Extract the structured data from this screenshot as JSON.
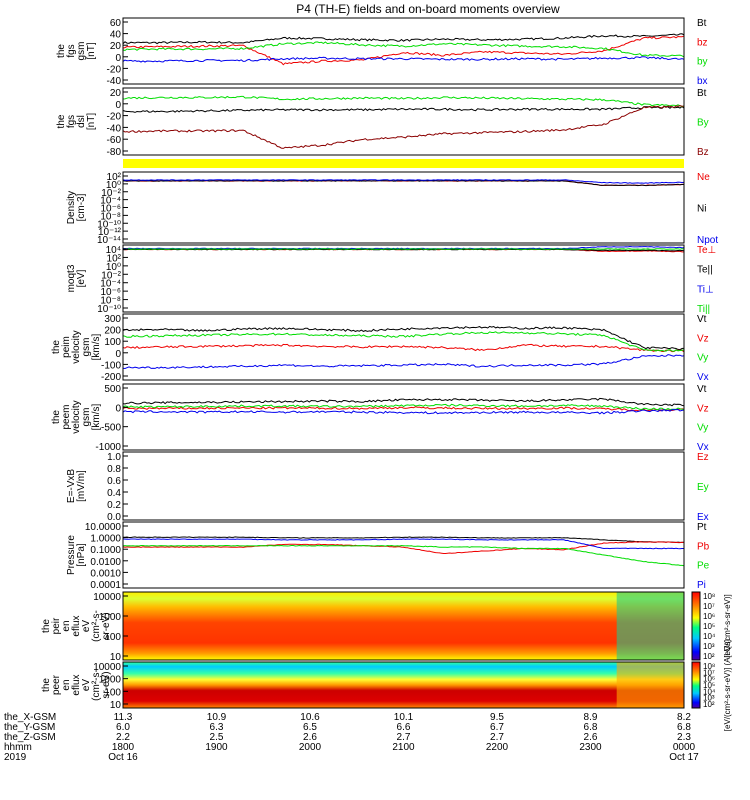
{
  "title": "P4 (TH-E) fields and on-board moments overview",
  "colors": {
    "black": "#000000",
    "red": "#ee0000",
    "green": "#00dd00",
    "blue": "#0000ee",
    "darkred": "#8b0000",
    "yellow": "#ffff00"
  },
  "chart_data": {
    "type": "line",
    "x_axis": {
      "rows": [
        {
          "label": "the_X-GSM",
          "values": [
            "11.3",
            "10.9",
            "10.6",
            "10.1",
            "9.5",
            "8.9",
            "8.2"
          ]
        },
        {
          "label": "the_Y-GSM",
          "values": [
            "6.0",
            "6.3",
            "6.5",
            "6.6",
            "6.7",
            "6.8",
            "6.8"
          ]
        },
        {
          "label": "the_Z-GSM",
          "values": [
            "2.2",
            "2.5",
            "2.6",
            "2.7",
            "2.7",
            "2.6",
            "2.3"
          ]
        },
        {
          "label": "hhmm",
          "values": [
            "1800",
            "1900",
            "2000",
            "2100",
            "2200",
            "2300",
            "0000"
          ]
        }
      ],
      "year": "2019",
      "date_start": "Oct 16",
      "date_end": "Oct 17",
      "range": [
        "1800",
        "0000"
      ]
    },
    "panels": [
      {
        "id": "fgs-gsm",
        "ylabel": [
          "the",
          "fgs",
          "gsm",
          "[nT]"
        ],
        "ticks": [
          "60",
          "40",
          "20",
          "0",
          "-20",
          "-40"
        ],
        "ylim": [
          -50,
          65
        ],
        "series": [
          {
            "name": "Bt",
            "color": "black",
            "values": [
              22,
              22,
              23,
              22,
              30,
              29,
              27,
              26,
              28,
              27,
              28,
              30,
              34,
              33,
              36
            ]
          },
          {
            "name": "bz",
            "color": "red",
            "values": [
              14,
              15,
              16,
              17,
              -15,
              -10,
              -8,
              5,
              0,
              6,
              4,
              2,
              8,
              30,
              32
            ]
          },
          {
            "name": "by",
            "color": "green",
            "values": [
              10,
              11,
              11,
              12,
              20,
              22,
              18,
              16,
              20,
              18,
              16,
              15,
              12,
              0,
              -1
            ]
          },
          {
            "name": "bx",
            "color": "blue",
            "values": [
              -10,
              -10,
              -9,
              -9,
              -6,
              -5,
              -6,
              -6,
              -7,
              -7,
              -6,
              -7,
              -5,
              -4,
              -7
            ]
          }
        ]
      },
      {
        "id": "fgs-dsl",
        "ylabel": [
          "the",
          "fgs",
          "dsl",
          "[nT]"
        ],
        "ticks": [
          "20",
          "0",
          "-20",
          "-40",
          "-60",
          "-80"
        ],
        "ylim": [
          -90,
          30
        ],
        "series": [
          {
            "name": "Bt",
            "color": "black",
            "values": [
              -12,
              -12,
              -11,
              -10,
              -9,
              -9,
              -9,
              -8,
              -8,
              -9,
              -8,
              -8,
              -8,
              -5,
              -5
            ]
          },
          {
            "name": "By",
            "color": "green",
            "values": [
              12,
              13,
              13,
              14,
              10,
              11,
              12,
              11,
              13,
              12,
              11,
              10,
              9,
              0,
              -2
            ]
          },
          {
            "name": "Bz",
            "color": "darkred",
            "values": [
              -48,
              -47,
              -47,
              -46,
              -78,
              -72,
              -62,
              -58,
              -52,
              -50,
              -48,
              -45,
              -35,
              -5,
              -3
            ]
          }
        ]
      },
      {
        "id": "density",
        "ylabel": [
          "Density",
          "[cm-3]"
        ],
        "ticks": [
          "10²",
          "10⁰",
          "10⁻²",
          "10⁻⁴",
          "10⁻⁶",
          "10⁻⁸",
          "10⁻¹⁰",
          "10⁻¹²",
          "10⁻¹⁴"
        ],
        "log": true,
        "ylim": [
          -14,
          2
        ],
        "series": [
          {
            "name": "Ne",
            "color": "red",
            "values": [
              0,
              0,
              0,
              0,
              0,
              0,
              0,
              0,
              0,
              0,
              0,
              0,
              -1,
              -1,
              -0.8
            ]
          },
          {
            "name": "Ni",
            "color": "black",
            "values": [
              0,
              0,
              0,
              0,
              0,
              0,
              0,
              0,
              0,
              0,
              0,
              0,
              -1,
              -1,
              -0.8
            ]
          },
          {
            "name": "Npot",
            "color": "blue",
            "values": [
              0.2,
              0.2,
              0.2,
              0.2,
              0.2,
              0.2,
              0.2,
              0.2,
              0.2,
              0.2,
              0.2,
              0.2,
              -0.4,
              -0.5,
              -0.3
            ]
          }
        ]
      },
      {
        "id": "moms",
        "ylabel": [
          "moqt3",
          "[eV]"
        ],
        "ticks": [
          "10⁴",
          "10²",
          "10⁰",
          "10⁻²",
          "10⁻⁴",
          "10⁻⁶",
          "10⁻⁸",
          "10⁻¹⁰"
        ],
        "log": true,
        "ylim": [
          -11,
          4
        ],
        "series": [
          {
            "name": "Te⊥",
            "color": "red",
            "values": [
              3,
              3,
              3,
              3,
              3,
              3,
              3,
              3,
              3,
              3,
              3,
              3,
              2.6,
              2.7,
              2.5
            ]
          },
          {
            "name": "Te||",
            "color": "black",
            "values": [
              3,
              3,
              3,
              3,
              3,
              3,
              3,
              3,
              3,
              3,
              3,
              3,
              2.8,
              2.8,
              2.7
            ]
          },
          {
            "name": "Ti⊥",
            "color": "blue",
            "values": [
              3.2,
              3.2,
              3.2,
              3.2,
              3.2,
              3.2,
              3.2,
              3.2,
              3.2,
              3.2,
              3.2,
              3.2,
              3.6,
              3.6,
              3.4
            ]
          },
          {
            "name": "Ti||",
            "color": "green",
            "values": [
              3.1,
              3.1,
              3.1,
              3.1,
              3.1,
              3.1,
              3.1,
              3.1,
              3.1,
              3.1,
              3.1,
              3.1,
              3.1,
              3.1,
              3.1
            ]
          }
        ]
      },
      {
        "id": "peim-velocity",
        "ylabel": [
          "the",
          "peim",
          "velocity",
          "gsm",
          "[km/s]"
        ],
        "ticks": [
          "300",
          "200",
          "100",
          "0",
          "-100",
          "-200"
        ],
        "ylim": [
          -220,
          310
        ],
        "series": [
          {
            "name": "Vt",
            "color": "black",
            "values": [
              180,
              185,
              175,
              190,
              195,
              185,
              175,
              190,
              200,
              205,
              195,
              200,
              180,
              40,
              30
            ]
          },
          {
            "name": "Vz",
            "color": "red",
            "values": [
              40,
              45,
              50,
              55,
              60,
              50,
              45,
              50,
              40,
              20,
              60,
              50,
              50,
              20,
              10
            ]
          },
          {
            "name": "Vy",
            "color": "green",
            "values": [
              130,
              135,
              140,
              145,
              150,
              140,
              135,
              130,
              150,
              160,
              160,
              150,
              140,
              20,
              15
            ]
          },
          {
            "name": "Vx",
            "color": "blue",
            "values": [
              -120,
              -120,
              -115,
              -110,
              -100,
              -110,
              -105,
              -100,
              -95,
              -110,
              -100,
              -100,
              -90,
              -30,
              -20
            ]
          }
        ]
      },
      {
        "id": "peem-velocity",
        "ylabel": [
          "the",
          "peem",
          "velocity",
          "gsm",
          "[km/s]"
        ],
        "ticks": [
          "500",
          "0",
          "-500",
          "-1000"
        ],
        "ylim": [
          -1000,
          620
        ],
        "series": [
          {
            "name": "Vt",
            "color": "black",
            "values": [
              150,
              160,
              170,
              180,
              190,
              200,
              190,
              230,
              240,
              220,
              200,
              230,
              250,
              120,
              100
            ]
          },
          {
            "name": "Vz",
            "color": "red",
            "values": [
              20,
              20,
              25,
              30,
              30,
              25,
              20,
              40,
              30,
              20,
              20,
              30,
              10,
              -20,
              -10
            ]
          },
          {
            "name": "Vy",
            "color": "green",
            "values": [
              60,
              60,
              70,
              80,
              80,
              70,
              70,
              90,
              100,
              90,
              80,
              90,
              80,
              10,
              10
            ]
          },
          {
            "name": "Vx",
            "color": "blue",
            "values": [
              -60,
              -60,
              -70,
              -60,
              -70,
              -60,
              -70,
              -80,
              -90,
              -80,
              -70,
              -80,
              -90,
              -40,
              -20
            ]
          }
        ]
      },
      {
        "id": "efield",
        "ylabel": [
          "E=-VxB",
          "[mV/m]"
        ],
        "ticks": [
          "1.0",
          "0.8",
          "0.6",
          "0.4",
          "0.2",
          "0.0"
        ],
        "ylim": [
          0,
          1
        ],
        "series": [
          {
            "name": "Ez",
            "color": "red",
            "values": []
          },
          {
            "name": "Ey",
            "color": "green",
            "values": []
          },
          {
            "name": "Ex",
            "color": "blue",
            "values": []
          }
        ]
      },
      {
        "id": "pressure",
        "ylabel": [
          "Pressure",
          "[nPa]"
        ],
        "ticks": [
          "10.0000",
          "1.0000",
          "0.1000",
          "0.0100",
          "0.0010",
          "0.0001"
        ],
        "log": true,
        "ylim": [
          -4,
          1
        ],
        "series": [
          {
            "name": "Pt",
            "color": "black",
            "values": [
              -0.15,
              -0.15,
              -0.15,
              -0.15,
              -0.2,
              -0.2,
              -0.2,
              -0.15,
              -0.15,
              -0.2,
              -0.2,
              -0.2,
              -0.35,
              -0.5,
              -0.55
            ]
          },
          {
            "name": "Pb",
            "color": "red",
            "values": [
              -0.9,
              -0.9,
              -0.9,
              -0.9,
              -0.7,
              -0.7,
              -0.8,
              -0.9,
              -1.4,
              -1.2,
              -1.0,
              -1.1,
              -0.6,
              -0.5,
              -0.55
            ]
          },
          {
            "name": "Pe",
            "color": "green",
            "values": [
              -0.8,
              -0.8,
              -0.8,
              -0.8,
              -0.8,
              -0.8,
              -0.8,
              -0.8,
              -0.9,
              -0.9,
              -1.0,
              -1.0,
              -1.5,
              -2.0,
              -2.3
            ]
          },
          {
            "name": "Pi",
            "color": "blue",
            "values": [
              -0.3,
              -0.3,
              -0.3,
              -0.3,
              -0.35,
              -0.35,
              -0.35,
              -0.3,
              -0.3,
              -0.35,
              -0.35,
              -0.35,
              -1.0,
              -1.0,
              -1.0
            ]
          }
        ]
      },
      {
        "id": "peir-spectrogram",
        "type": "heatmap",
        "ylabel": [
          "the",
          "peir",
          "en",
          "eflux",
          "eV",
          "(cm²-s-",
          "sr-eV)"
        ],
        "ticks": [
          "10000",
          "1000",
          "100",
          "10"
        ],
        "log": true,
        "ylim": [
          0.8,
          4.4
        ]
      },
      {
        "id": "peer-spectrogram",
        "type": "heatmap",
        "ylabel": [
          "the",
          "peer",
          "en",
          "eflux",
          "eV",
          "(cm²-s-",
          "sr-eV)"
        ],
        "ticks": [
          "10000",
          "1000",
          "100",
          "10"
        ],
        "log": true,
        "ylim": [
          0.8,
          4.4
        ]
      }
    ],
    "colorbar": {
      "ticks": [
        "10⁸",
        "10⁷",
        "10⁶",
        "10⁵",
        "10⁴",
        "10³",
        "10²"
      ],
      "label": "[eV/(cm²-s-sr-eV)]"
    },
    "colorbar2": {
      "ticks": [
        "10⁸",
        "10⁷",
        "10⁶",
        "10⁵",
        "10⁴",
        "10³",
        "10²"
      ],
      "label": "[eV/(cm²-s-sr-eV)] (All Qs)"
    }
  }
}
